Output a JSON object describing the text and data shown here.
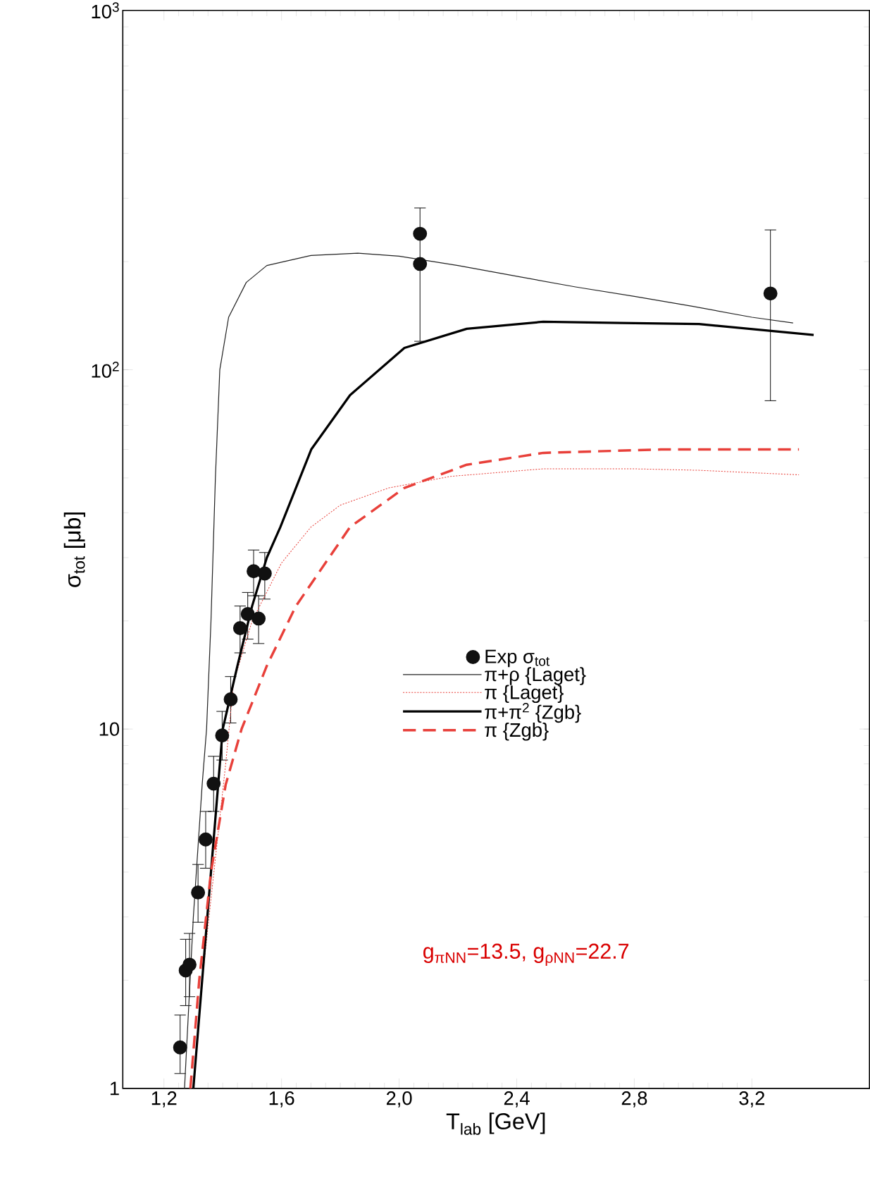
{
  "chart_data": {
    "type": "line",
    "xlabel": "T$_{lab}$ [GeV]",
    "ylabel": "σ$_{tot}$ [μb]",
    "log": "y",
    "xlim": [
      1.06,
      3.6
    ],
    "ylim": [
      1,
      1000
    ],
    "xticks": [
      {
        "value": 1.2,
        "label": "1,2"
      },
      {
        "value": 1.6,
        "label": "1,6"
      },
      {
        "value": 2.0,
        "label": "2,0"
      },
      {
        "value": 2.4,
        "label": "2,4"
      },
      {
        "value": 2.8,
        "label": "2,8"
      },
      {
        "value": 3.2,
        "label": "3,2"
      }
    ],
    "yticks": [
      {
        "value": 1,
        "label": "1"
      },
      {
        "value": 10,
        "label": "10"
      },
      {
        "value": 100,
        "label": "10$^{2}$"
      },
      {
        "value": 1000,
        "label": "10$^{3}$"
      }
    ],
    "legend": "bottom right",
    "grid": false,
    "annotations": [
      "g$_{πNN}$=13.5, g$_{ρNN}$=22.7"
    ],
    "series": [
      {
        "name": "Exp σ$_{tot}$",
        "type": "scatter",
        "marker": "circle",
        "color": "#111111",
        "x": [
          1.255,
          1.274,
          1.287,
          1.316,
          1.342,
          1.369,
          1.398,
          1.427,
          1.459,
          1.485,
          1.522,
          1.505,
          1.543,
          2.071,
          2.071,
          3.263
        ],
        "values": [
          1.3,
          2.13,
          2.21,
          3.51,
          4.93,
          7.05,
          9.6,
          12.1,
          19.1,
          20.9,
          20.3,
          27.5,
          27.1,
          239,
          197,
          163
        ],
        "errors": [
          [
            1.1,
            1.6
          ],
          [
            1.7,
            2.6
          ],
          [
            1.8,
            2.7
          ],
          [
            2.9,
            4.2
          ],
          [
            4.1,
            5.9
          ],
          [
            5.9,
            8.4
          ],
          [
            8.2,
            11.2
          ],
          [
            10.4,
            14
          ],
          [
            16.3,
            22
          ],
          [
            17.8,
            24
          ],
          [
            17.3,
            23.5
          ],
          [
            23.5,
            31.5
          ],
          [
            23,
            31
          ],
          null,
          [
            120,
            282
          ],
          [
            82,
            245
          ]
        ]
      },
      {
        "name": "π+ρ  {Laget}",
        "type": "line",
        "line_style": "solid",
        "color": "#222222",
        "x": [
          1.27,
          1.3,
          1.33,
          1.345,
          1.36,
          1.375,
          1.39,
          1.42,
          1.48,
          1.55,
          1.7,
          1.86,
          2.0,
          2.2,
          2.4,
          2.6,
          2.8,
          3.0,
          3.2,
          3.34
        ],
        "values": [
          1,
          3,
          7,
          10,
          20,
          50,
          100,
          140,
          175,
          195,
          208,
          211,
          207,
          195,
          182,
          170,
          160,
          150,
          140,
          135
        ]
      },
      {
        "name": "π      {Laget}",
        "type": "line",
        "line_style": "dotted",
        "color": "#e8403a",
        "x": [
          1.3,
          1.33,
          1.37,
          1.41,
          1.437,
          1.5,
          1.6,
          1.7,
          1.8,
          1.965,
          2.176,
          2.49,
          2.8,
          3.02,
          3.36
        ],
        "values": [
          1,
          2,
          4,
          8,
          13.5,
          20,
          29,
          36.5,
          42,
          46.9,
          50.5,
          53,
          53,
          52.5,
          51
        ]
      },
      {
        "name": "π+π$^{2}$  {Zgb}",
        "type": "line",
        "line_style": "solid",
        "color": "#000000",
        "x": [
          1.3,
          1.33,
          1.36,
          1.4,
          1.45,
          1.5,
          1.55,
          1.596,
          1.701,
          1.833,
          2.018,
          2.23,
          2.49,
          2.757,
          3.02,
          3.41
        ],
        "values": [
          1,
          2,
          4,
          10,
          15,
          22,
          30,
          36.5,
          60,
          85,
          115,
          130,
          136,
          135,
          134,
          125
        ]
      },
      {
        "name": "π        {Zgb}",
        "type": "line",
        "line_style": "dashed",
        "color": "#e8403a",
        "x": [
          1.29,
          1.32,
          1.36,
          1.41,
          1.464,
          1.55,
          1.649,
          1.833,
          2.018,
          2.23,
          2.49,
          2.89,
          3.36
        ],
        "values": [
          1,
          2,
          4,
          7,
          10,
          15,
          22,
          36.5,
          46.9,
          54.4,
          58.7,
          60,
          60
        ]
      }
    ]
  }
}
